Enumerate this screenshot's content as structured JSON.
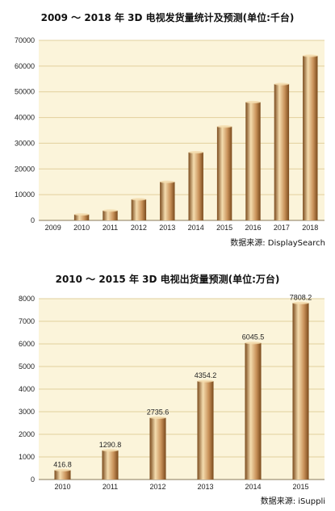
{
  "chart_data": [
    {
      "type": "bar",
      "title": "2009 ～ 2018 年 3D 电视发货量统计及预测(单位:千台)",
      "source": "数据来源: DisplaySearch",
      "categories": [
        "2009",
        "2010",
        "2011",
        "2012",
        "2013",
        "2014",
        "2015",
        "2016",
        "2017",
        "2018"
      ],
      "values": [
        0,
        2300,
        3800,
        8200,
        15000,
        26500,
        36500,
        46000,
        53000,
        64000
      ],
      "ylim": [
        0,
        70000
      ],
      "yticks": [
        0,
        10000,
        20000,
        30000,
        40000,
        50000,
        60000,
        70000
      ],
      "grid": true,
      "colors": {
        "plot_bg": "#fbf4da",
        "grid": "#e2cf9c",
        "bar_light": "#f4dcae",
        "bar_mid": "#c9925a",
        "bar_dark": "#7a4a1c"
      }
    },
    {
      "type": "bar",
      "title": "2010 ～ 2015 年 3D 电视出货量预测(单位:万台)",
      "source": "数据来源: iSuppli",
      "categories": [
        "2010",
        "2011",
        "2012",
        "2013",
        "2014",
        "2015"
      ],
      "values": [
        416.8,
        1290.8,
        2735.6,
        4354.2,
        6045.5,
        7808.2
      ],
      "data_labels": [
        "416.8",
        "1290.8",
        "2735.6",
        "4354.2",
        "6045.5",
        "7808.2"
      ],
      "ylim": [
        0,
        8000
      ],
      "yticks": [
        0,
        1000,
        2000,
        3000,
        4000,
        5000,
        6000,
        7000,
        8000
      ],
      "grid": true,
      "colors": {
        "plot_bg": "#fbf4da",
        "grid": "#e2cf9c",
        "bar_light": "#f4dcae",
        "bar_mid": "#c9925a",
        "bar_dark": "#7a4a1c"
      }
    }
  ]
}
